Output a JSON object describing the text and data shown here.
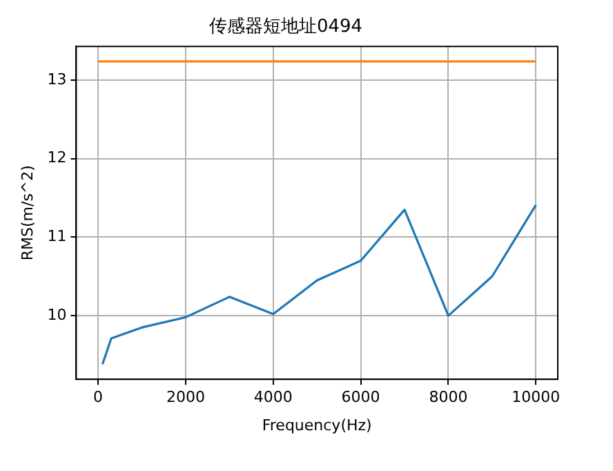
{
  "chart_data": {
    "type": "line",
    "title": "传感器短地址0494",
    "xlabel": "Frequency(Hz)",
    "ylabel": "RMS(m/s^2)",
    "xlim": [
      -500,
      10500
    ],
    "xticks": [
      0,
      2000,
      4000,
      6000,
      8000,
      10000
    ],
    "ylim": [
      9.19,
      13.43
    ],
    "yticks": [
      10,
      11,
      12,
      13
    ],
    "grid": true,
    "series": [
      {
        "color": "#1f77b4",
        "x": [
          100,
          300,
          1000,
          2000,
          3000,
          4000,
          5000,
          6000,
          7000,
          8000,
          9000,
          10000
        ],
        "values": [
          9.38,
          9.71,
          9.85,
          9.98,
          10.24,
          10.02,
          10.45,
          10.7,
          11.35,
          10.0,
          10.5,
          11.41
        ]
      },
      {
        "color": "#ff7f0e",
        "x": [
          0,
          10000
        ],
        "values": [
          13.24,
          13.24
        ]
      }
    ]
  }
}
